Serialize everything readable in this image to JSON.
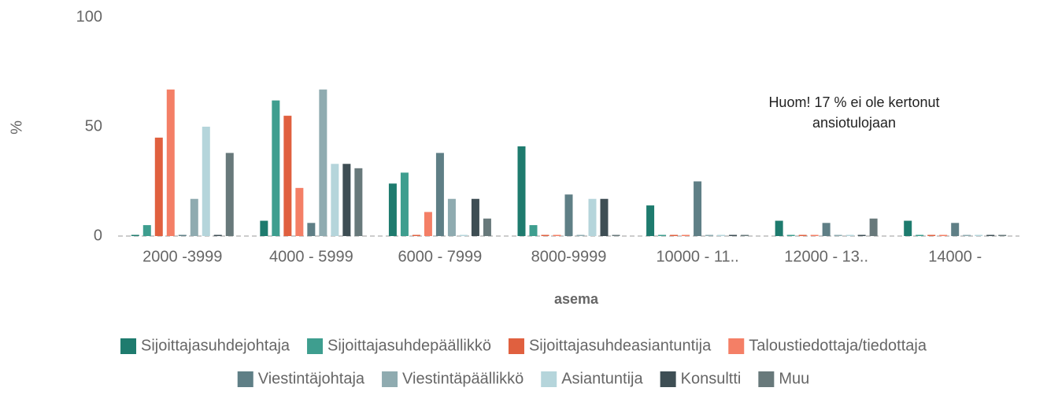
{
  "chart_data": {
    "type": "bar",
    "categories": [
      "2000 -3999",
      "4000 - 5999",
      "6000 - 7999",
      "8000-9999",
      "10000 - 11..",
      "12000 - 13..",
      "14000 -"
    ],
    "series": [
      {
        "name": "Sijoittajasuhdejohtaja",
        "color": "#1e7b6e",
        "values": [
          0,
          7,
          24,
          41,
          14,
          7,
          7
        ]
      },
      {
        "name": "Sijoittajasuhdepäällikkö",
        "color": "#3e9e8f",
        "values": [
          5,
          62,
          29,
          5,
          0,
          0,
          0
        ]
      },
      {
        "name": "Sijoittajasuhdeasiantuntija",
        "color": "#e0603f",
        "values": [
          45,
          55,
          0,
          0,
          0,
          0,
          0
        ]
      },
      {
        "name": "Taloustiedottaja/tiedottaja",
        "color": "#f47f66",
        "values": [
          67,
          22,
          11,
          0,
          0,
          0,
          0
        ]
      },
      {
        "name": "Viestintäjohtaja",
        "color": "#5f7f86",
        "values": [
          0,
          6,
          38,
          19,
          25,
          6,
          6
        ]
      },
      {
        "name": "Viestintäpäällikkö",
        "color": "#8fabb0",
        "values": [
          17,
          67,
          17,
          0,
          0,
          0,
          0
        ]
      },
      {
        "name": "Asiantuntija",
        "color": "#b5d5db",
        "values": [
          50,
          33,
          0,
          17,
          0,
          0,
          0
        ]
      },
      {
        "name": "Konsultti",
        "color": "#3e4e54",
        "values": [
          0,
          33,
          17,
          17,
          0,
          0,
          0
        ]
      },
      {
        "name": "Muu",
        "color": "#68797b",
        "values": [
          38,
          31,
          8,
          0,
          0,
          8,
          0
        ]
      }
    ],
    "ylim": [
      0,
      100
    ],
    "yticks": [
      0,
      50,
      100
    ],
    "y_label": "%",
    "x_label": "asema",
    "annotation": [
      "Huom! 17 % ei ole kertonut",
      "ansiotulojaan"
    ],
    "legend": "bottom"
  }
}
